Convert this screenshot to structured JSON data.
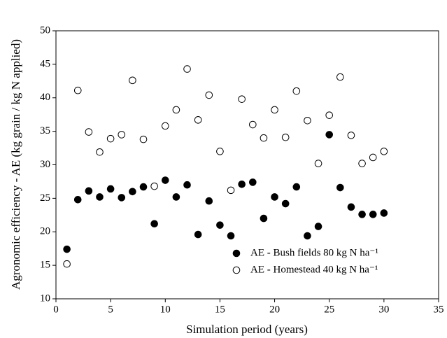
{
  "chart_data": {
    "type": "scatter",
    "xlabel": "Simulation period (years)",
    "ylabel": "Agronomic efficiency - AE (kg grain / kg N applied)",
    "xlim": [
      0,
      35
    ],
    "xticks": [
      0,
      5,
      10,
      15,
      20,
      25,
      30,
      35
    ],
    "ylim": [
      10,
      50
    ],
    "yticks": [
      10,
      15,
      20,
      25,
      30,
      35,
      40,
      45,
      50
    ],
    "legend": "lower right",
    "x": [
      1,
      2,
      3,
      4,
      5,
      6,
      7,
      8,
      9,
      10,
      11,
      12,
      13,
      14,
      15,
      16,
      17,
      18,
      19,
      20,
      21,
      22,
      23,
      24,
      25,
      26,
      27,
      28,
      29,
      30
    ],
    "series": [
      {
        "name": "AE - Bush fields 80 kg N ha⁻¹",
        "color": "#000000",
        "marker": "filled",
        "values": [
          17.4,
          24.8,
          26.1,
          25.2,
          26.4,
          25.1,
          26.0,
          26.7,
          21.2,
          27.7,
          25.2,
          27.0,
          19.6,
          24.6,
          21.0,
          19.4,
          27.1,
          27.4,
          22.0,
          25.2,
          24.2,
          26.7,
          19.4,
          20.8,
          34.5,
          26.6,
          23.7,
          22.6,
          22.6,
          22.8
        ]
      },
      {
        "name": "AE - Homestead 40 kg N ha⁻¹",
        "color": "#000000",
        "marker": "open",
        "values": [
          15.2,
          41.1,
          34.9,
          31.9,
          33.9,
          34.5,
          42.6,
          33.8,
          26.8,
          35.8,
          38.2,
          44.3,
          36.7,
          40.4,
          32.0,
          26.2,
          39.8,
          36.0,
          34.0,
          38.2,
          34.1,
          41.0,
          36.6,
          30.2,
          37.4,
          43.1,
          34.4,
          30.2,
          31.1,
          32.0
        ]
      }
    ]
  }
}
